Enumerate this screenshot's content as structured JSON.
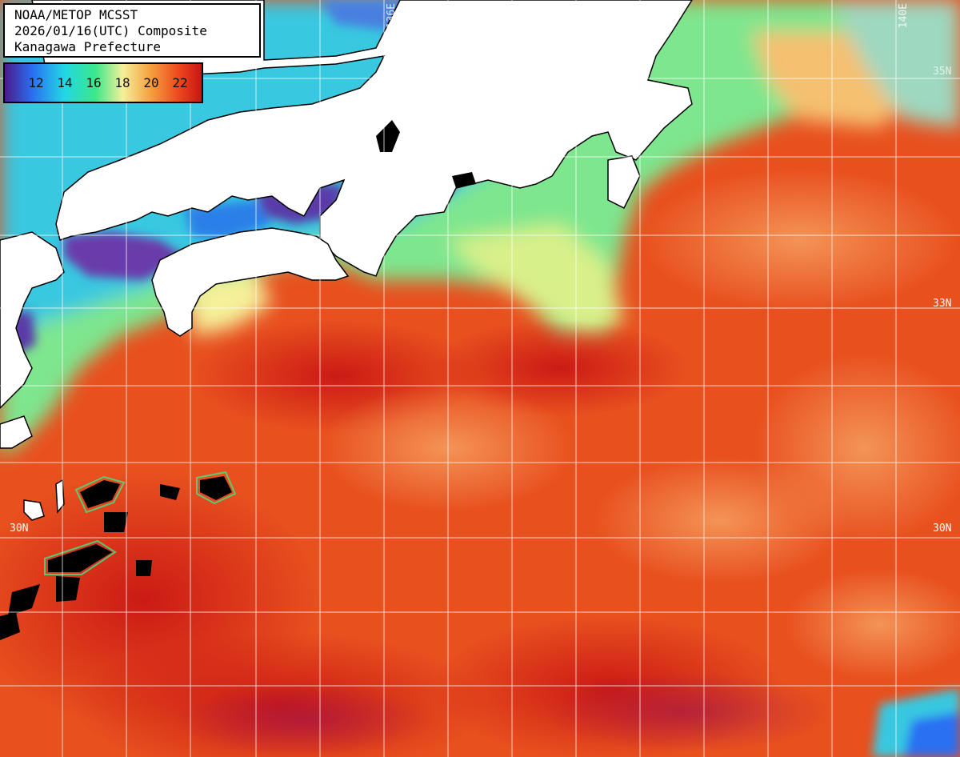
{
  "header": {
    "line1": "NOAA/METOP MCSST",
    "line2": "2026/01/16(UTC) Composite",
    "line3": "Kanagawa Prefecture"
  },
  "legend": {
    "ticks": [
      "12",
      "14",
      "16",
      "18",
      "20",
      "22"
    ],
    "colors": [
      "#4b1a8a",
      "#2a6ff2",
      "#22d6e6",
      "#3ae88a",
      "#f5f09a",
      "#f5a040",
      "#ee4a1e",
      "#c81414"
    ]
  },
  "grid_labels": {
    "lat_33": "33N",
    "lat_30": "30N",
    "lon_136": "136E",
    "lon_140": "140E",
    "lat_35": "35N",
    "lat_33_left": "33"
  },
  "colors": {
    "land": "#ffffff",
    "coast": "#000000",
    "cloud": "#000000",
    "grid": "#ffffff",
    "sea_warm": "#e8501e",
    "sea_hot": "#d42018",
    "sea_light": "#f49048",
    "sea_cool": "#7ee68e",
    "sea_cold": "#38c8e0",
    "sea_coldest": "#3a2a9a"
  }
}
